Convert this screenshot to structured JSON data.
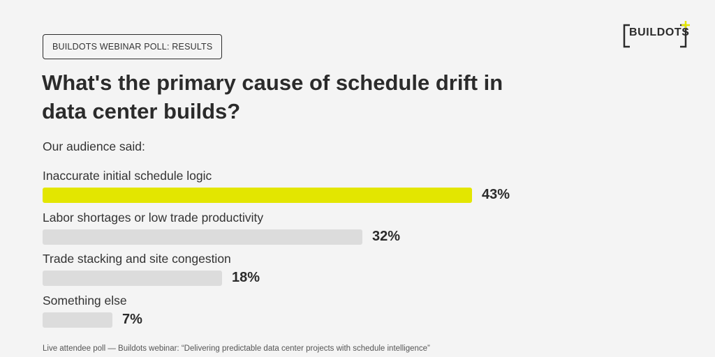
{
  "header": {
    "tag": "BUILDOTS WEBINAR POLL: RESULTS",
    "logo_text": "BUILDOTS"
  },
  "colors": {
    "accent": "#e3e600",
    "bar_default": "#dcdcdc",
    "text": "#2b2b2b",
    "background": "#f4f4f4"
  },
  "chart_data": {
    "type": "bar",
    "orientation": "horizontal",
    "title": "What's the primary cause of schedule drift in data center builds?",
    "subtitle": "Our audience said:",
    "categories": [
      "Inaccurate initial schedule logic",
      "Labor shortages or low trade productivity",
      "Trade stacking and site congestion",
      "Something else"
    ],
    "values": [
      43,
      32,
      18,
      7
    ],
    "value_labels": [
      "43%",
      "32%",
      "18%",
      "7%"
    ],
    "highlight_index": 0,
    "xlim": [
      0,
      43
    ]
  },
  "footer": "Live attendee poll — Buildots webinar: “Delivering predictable data center projects with schedule intelligence”"
}
